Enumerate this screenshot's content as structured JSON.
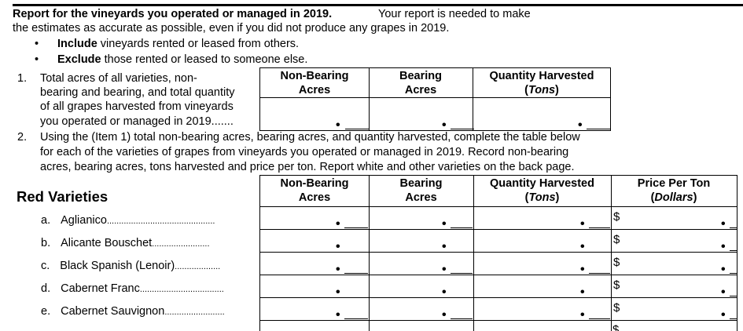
{
  "intro": {
    "heading": "Report for the vineyards you operated or managed in 2019.",
    "line1_rest": "Your report is needed to make",
    "line2": "the estimates as accurate as possible, even if you did not produce any grapes in 2019.",
    "bullets": [
      {
        "bold": "Include",
        "text": "vineyards rented or leased from others."
      },
      {
        "bold": "Exclude",
        "text": "those rented or leased to someone else."
      }
    ]
  },
  "item1": {
    "number": "1.",
    "lines": [
      "Total acres of all varieties, non-",
      "bearing and bearing, and total quantity",
      "of all grapes harvested from vineyards",
      "you operated or managed in 2019......."
    ],
    "columns": [
      {
        "line1": "Non-Bearing",
        "line2": "Acres"
      },
      {
        "line1": "Bearing",
        "line2": "Acres"
      },
      {
        "line1": "Quantity Harvested",
        "line2": "Tons"
      }
    ]
  },
  "item2": {
    "number": "2.",
    "lines": [
      "Using the (Item 1) total non-bearing acres, bearing acres, and quantity harvested, complete the table below",
      "for each of the varieties of grapes from vineyards you operated or managed in 2019. Record non-bearing",
      "acres, bearing acres, tons harvested and price per ton.  Report white and other varieties on the back page."
    ]
  },
  "varieties": {
    "title": "Red Varieties",
    "columns": [
      {
        "line1": "Non-Bearing",
        "line2": "Acres"
      },
      {
        "line1": "Bearing",
        "line2": "Acres"
      },
      {
        "line1": "Quantity Harvested",
        "line2": "Tons"
      },
      {
        "line1": "Price Per Ton",
        "line2": "Dollars"
      }
    ],
    "currency": "$",
    "decimal": "•",
    "rows": [
      {
        "letter": "a.",
        "name": "Aglianico",
        "leader": "............................................."
      },
      {
        "letter": "b.",
        "name": "Alicante Bouschet",
        "leader": "........................"
      },
      {
        "letter": "c.",
        "name": "Black Spanish (Lenoir)",
        "leader": "..................."
      },
      {
        "letter": "d.",
        "name": "Cabernet Franc",
        "leader": "..................................."
      },
      {
        "letter": "e.",
        "name": "Cabernet Sauvignon",
        "leader": "........................."
      }
    ]
  }
}
